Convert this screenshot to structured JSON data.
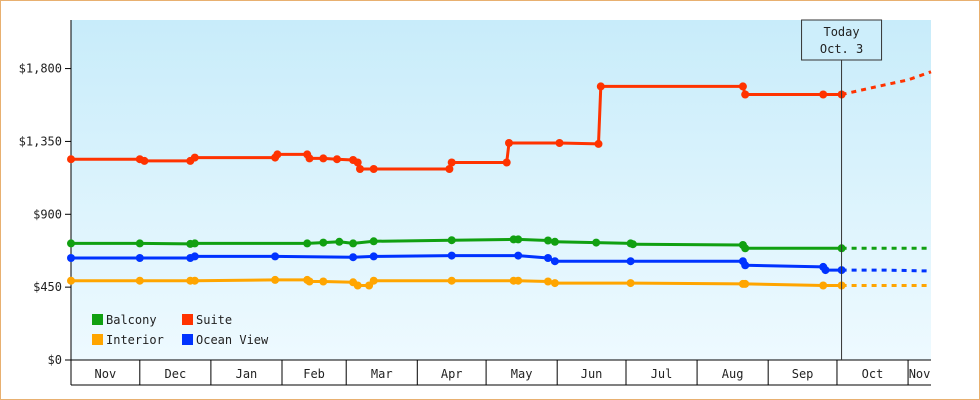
{
  "chart_data": {
    "type": "line",
    "title": "",
    "xlabel": "",
    "ylabel": "",
    "ylim": [
      0,
      2100
    ],
    "xlim_days": [
      0,
      375
    ],
    "y_ticks": [
      {
        "value": 0,
        "label": "$0"
      },
      {
        "value": 450,
        "label": "$450"
      },
      {
        "value": 900,
        "label": "$900"
      },
      {
        "value": 1350,
        "label": "$1,350"
      },
      {
        "value": 1800,
        "label": "$1,800"
      }
    ],
    "months": [
      {
        "label": "Nov",
        "start": 0,
        "end": 30
      },
      {
        "label": "Dec",
        "start": 30,
        "end": 61
      },
      {
        "label": "Jan",
        "start": 61,
        "end": 92
      },
      {
        "label": "Feb",
        "start": 92,
        "end": 120
      },
      {
        "label": "Mar",
        "start": 120,
        "end": 151
      },
      {
        "label": "Apr",
        "start": 151,
        "end": 181
      },
      {
        "label": "May",
        "start": 181,
        "end": 212
      },
      {
        "label": "Jun",
        "start": 212,
        "end": 242
      },
      {
        "label": "Jul",
        "start": 242,
        "end": 273
      },
      {
        "label": "Aug",
        "start": 273,
        "end": 304
      },
      {
        "label": "Sep",
        "start": 304,
        "end": 334
      },
      {
        "label": "Oct",
        "start": 334,
        "end": 365
      },
      {
        "label": "Nov",
        "start": 365,
        "end": 375
      }
    ],
    "today": {
      "line1": "Today",
      "line2": "Oct. 3",
      "day": 336
    },
    "grid": false,
    "legend": "bottom-left",
    "series": [
      {
        "name": "Balcony",
        "color": "#11a011",
        "points": [
          [
            0,
            720
          ],
          [
            30,
            720
          ],
          [
            52,
            717
          ],
          [
            54,
            720
          ],
          [
            103,
            720
          ],
          [
            110,
            725
          ],
          [
            117,
            730
          ],
          [
            123,
            720
          ],
          [
            132,
            733
          ],
          [
            166,
            740
          ],
          [
            193,
            745
          ],
          [
            195,
            745
          ],
          [
            208,
            738
          ],
          [
            211,
            730
          ],
          [
            229,
            725
          ],
          [
            244,
            720
          ],
          [
            245,
            715
          ],
          [
            293,
            710
          ],
          [
            294,
            690
          ],
          [
            336,
            690
          ]
        ],
        "projection": [
          [
            336,
            690
          ],
          [
            375,
            690
          ]
        ]
      },
      {
        "name": "Suite",
        "color": "#ff3300",
        "points": [
          [
            0,
            1240
          ],
          [
            30,
            1240
          ],
          [
            32,
            1230
          ],
          [
            52,
            1230
          ],
          [
            54,
            1250
          ],
          [
            89,
            1250
          ],
          [
            90,
            1270
          ],
          [
            103,
            1270
          ],
          [
            104,
            1245
          ],
          [
            110,
            1245
          ],
          [
            116,
            1240
          ],
          [
            123,
            1235
          ],
          [
            125,
            1220
          ],
          [
            126,
            1180
          ],
          [
            132,
            1180
          ],
          [
            165,
            1180
          ],
          [
            166,
            1220
          ],
          [
            190,
            1220
          ],
          [
            191,
            1340
          ],
          [
            213,
            1340
          ],
          [
            230,
            1335
          ],
          [
            231,
            1690
          ],
          [
            293,
            1690
          ],
          [
            294,
            1640
          ],
          [
            328,
            1640
          ],
          [
            336,
            1640
          ]
        ],
        "projection": [
          [
            336,
            1640
          ],
          [
            355,
            1700
          ],
          [
            365,
            1730
          ],
          [
            375,
            1780
          ]
        ]
      },
      {
        "name": "Interior",
        "color": "#ffa500",
        "points": [
          [
            0,
            490
          ],
          [
            30,
            490
          ],
          [
            52,
            490
          ],
          [
            54,
            490
          ],
          [
            89,
            495
          ],
          [
            103,
            495
          ],
          [
            104,
            485
          ],
          [
            110,
            485
          ],
          [
            123,
            480
          ],
          [
            125,
            460
          ],
          [
            130,
            460
          ],
          [
            132,
            490
          ],
          [
            166,
            490
          ],
          [
            193,
            490
          ],
          [
            195,
            490
          ],
          [
            208,
            485
          ],
          [
            211,
            475
          ],
          [
            244,
            475
          ],
          [
            293,
            470
          ],
          [
            294,
            470
          ],
          [
            328,
            460
          ],
          [
            336,
            460
          ]
        ],
        "projection": [
          [
            336,
            460
          ],
          [
            375,
            460
          ]
        ]
      },
      {
        "name": "Ocean View",
        "color": "#0033ff",
        "points": [
          [
            0,
            630
          ],
          [
            30,
            630
          ],
          [
            52,
            630
          ],
          [
            54,
            640
          ],
          [
            89,
            640
          ],
          [
            123,
            635
          ],
          [
            132,
            640
          ],
          [
            166,
            645
          ],
          [
            195,
            645
          ],
          [
            208,
            630
          ],
          [
            211,
            610
          ],
          [
            244,
            610
          ],
          [
            293,
            610
          ],
          [
            294,
            585
          ],
          [
            328,
            575
          ],
          [
            329,
            555
          ],
          [
            336,
            555
          ]
        ],
        "projection": [
          [
            336,
            555
          ],
          [
            355,
            555
          ],
          [
            375,
            550
          ]
        ]
      }
    ]
  }
}
